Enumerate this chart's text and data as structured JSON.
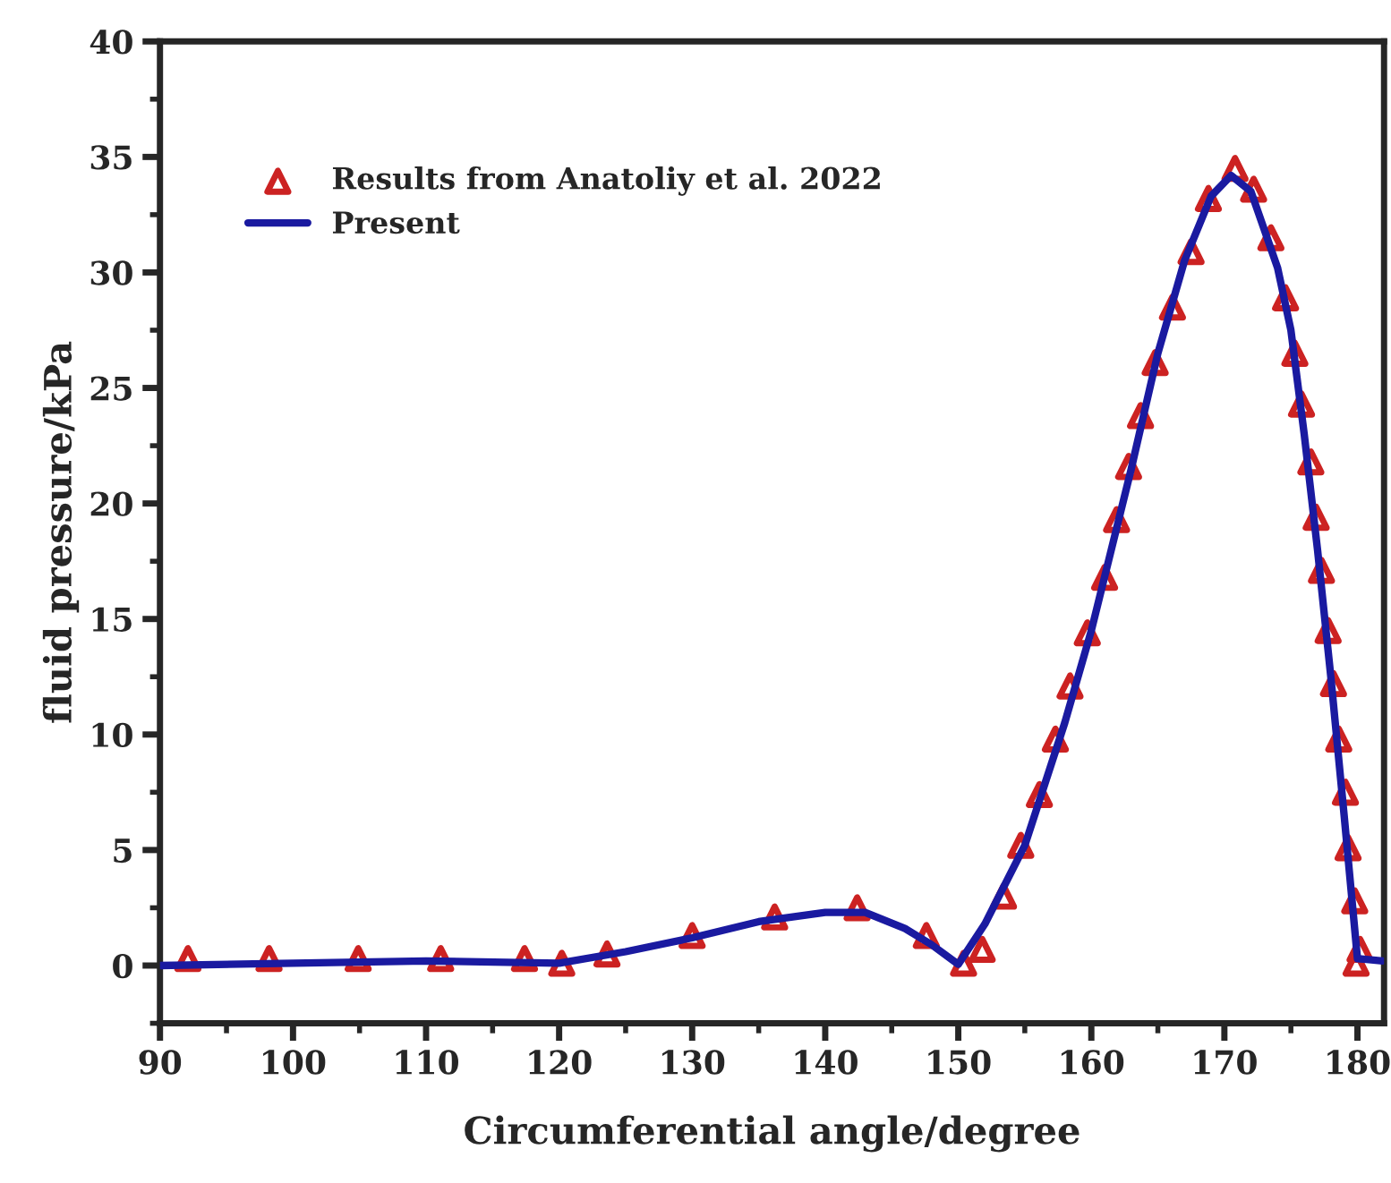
{
  "chart_data": {
    "type": "line",
    "xlabel": "Circumferential angle/degree",
    "ylabel": "fluid pressure/kPa",
    "xlim": [
      90,
      182
    ],
    "xticks": [
      90,
      100,
      110,
      120,
      130,
      140,
      150,
      160,
      170,
      180
    ],
    "ylim": [
      -2.5,
      40
    ],
    "yticks": [
      0,
      5,
      10,
      15,
      20,
      25,
      30,
      35,
      40
    ],
    "grid": false,
    "legend": "top left",
    "series": [
      {
        "name": "Results from Anatoliy et al. 2022",
        "type": "scatter",
        "marker": "triangle",
        "color": "#cc2222",
        "x": [
          92.1,
          98.2,
          104.9,
          111.1,
          117.4,
          120.2,
          123.6,
          130.0,
          136.2,
          142.4,
          147.6,
          150.4,
          151.8,
          153.4,
          154.7,
          156.1,
          157.3,
          158.4,
          159.7,
          161.0,
          161.9,
          162.8,
          163.7,
          164.8,
          166.1,
          167.5,
          168.8,
          170.8,
          172.2,
          173.5,
          174.6,
          175.3,
          175.8,
          176.5,
          176.9,
          177.3,
          177.8,
          178.2,
          178.6,
          179.1,
          179.3,
          179.8,
          180.2,
          179.9
        ],
        "values": [
          0.3,
          0.3,
          0.3,
          0.3,
          0.3,
          0.1,
          0.5,
          1.3,
          2.1,
          2.5,
          1.3,
          0.1,
          0.7,
          3.0,
          5.2,
          7.4,
          9.8,
          12.1,
          14.4,
          16.8,
          19.3,
          21.6,
          23.8,
          26.1,
          28.5,
          30.9,
          33.2,
          34.5,
          33.6,
          31.5,
          28.9,
          26.5,
          24.3,
          21.8,
          19.4,
          17.1,
          14.5,
          12.2,
          9.8,
          7.5,
          5.1,
          2.8,
          0.7,
          0.1
        ]
      },
      {
        "name": "Present",
        "marker": "none",
        "line_style": "solid",
        "color": "#1a1aa0",
        "x": [
          90,
          100,
          110,
          120,
          125,
          130,
          135,
          140,
          143,
          146,
          148,
          150,
          152,
          155,
          158,
          160,
          163,
          165,
          167,
          169,
          170.5,
          172,
          174,
          175,
          176,
          177,
          178,
          179,
          180,
          181.9
        ],
        "values": [
          0.0,
          0.1,
          0.2,
          0.1,
          0.6,
          1.2,
          1.9,
          2.3,
          2.3,
          1.6,
          0.9,
          0.05,
          1.8,
          5.2,
          10.5,
          14.5,
          21.5,
          26.5,
          30.5,
          33.3,
          34.2,
          33.5,
          30.2,
          27.5,
          23.0,
          18.0,
          12.5,
          6.5,
          0.3,
          0.2
        ]
      }
    ]
  }
}
